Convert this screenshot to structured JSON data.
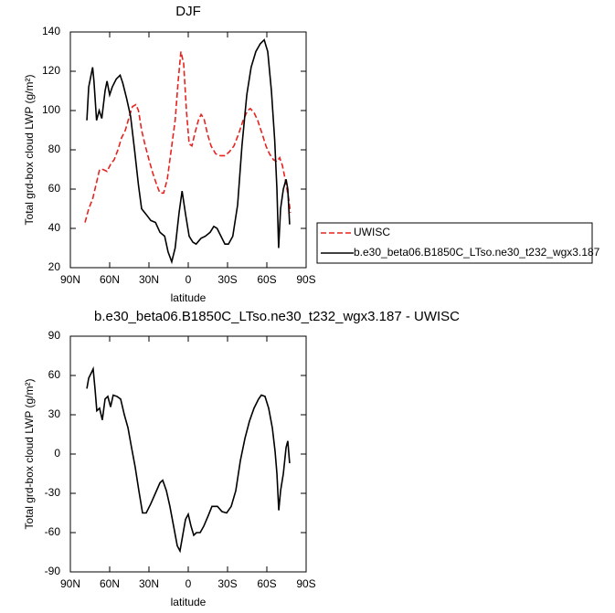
{
  "chart_data": [
    {
      "type": "line",
      "title": "DJF",
      "xlabel": "latitude",
      "ylabel": "Total grd-box cloud LWP (g/m²)",
      "xlim": [
        90,
        -90
      ],
      "xticks": [
        {
          "value": 90,
          "label": "90N"
        },
        {
          "value": 60,
          "label": "60N"
        },
        {
          "value": 30,
          "label": "30N"
        },
        0,
        {
          "value": -30,
          "label": "30S"
        },
        {
          "value": -60,
          "label": "60S"
        },
        {
          "value": -90,
          "label": "90S"
        }
      ],
      "ylim": [
        20,
        140
      ],
      "yticks": [
        20,
        40,
        60,
        80,
        100,
        120,
        140
      ],
      "legend": "right",
      "series": [
        {
          "name": "UWISC",
          "color": "#e8231f",
          "linestyle": "dashed",
          "x": [
            78.8,
            76,
            73,
            70.5,
            67.7,
            65,
            62,
            59,
            56.5,
            53.7,
            51,
            48,
            45,
            42.6,
            40,
            38,
            35.6,
            32.8,
            30,
            27,
            24,
            21.6,
            18.8,
            16,
            13,
            10,
            7.7,
            5.6,
            3.5,
            1.4,
            -0.7,
            -2.8,
            -4.9,
            -7.7,
            -9.8,
            -12,
            -14.7,
            -17.4,
            -20.9,
            -24.4,
            -28,
            -31.4,
            -34.9,
            -38.4,
            -41.9,
            -45.3,
            -47.4,
            -50.2,
            -53,
            -56.5,
            -59.3,
            -62,
            -65,
            -67.7,
            -69.8,
            -71.9,
            -74,
            -76.7,
            -78
          ],
          "values": [
            43,
            50,
            55,
            62,
            70,
            70,
            69,
            73,
            75,
            80,
            86,
            90,
            97,
            102,
            103,
            100,
            90,
            82,
            75,
            68,
            62,
            58,
            58,
            65,
            80,
            95,
            115,
            130,
            124,
            100,
            83,
            82,
            88,
            95,
            98,
            96,
            88,
            82,
            78,
            77,
            77,
            79,
            82,
            88,
            95,
            100,
            101,
            99,
            95,
            88,
            82,
            78,
            75,
            74,
            76,
            72,
            65,
            55,
            48
          ]
        },
        {
          "name": "b.e30_beta06.B1850C_LTso.ne30_t232_wgx3.187",
          "color": "#000000",
          "linestyle": "solid",
          "x": [
            77.4,
            76,
            73,
            72,
            70,
            68,
            66,
            63.5,
            62,
            60,
            58,
            55,
            52,
            50,
            47,
            44,
            41,
            38,
            35.6,
            32,
            28.6,
            25,
            21.6,
            18,
            15.4,
            12.6,
            10,
            7,
            4.7,
            2,
            -0.7,
            -3.5,
            -6,
            -9.8,
            -13,
            -16.7,
            -19.5,
            -22,
            -25,
            -28,
            -30.7,
            -34,
            -37.7,
            -41,
            -44.7,
            -48,
            -51.6,
            -55,
            -58,
            -60.7,
            -63.5,
            -66,
            -67.7,
            -69,
            -70.5,
            -72.6,
            -74.7,
            -76,
            -77.4
          ],
          "values": [
            95,
            112,
            122,
            115,
            95,
            100,
            96,
            110,
            115,
            108,
            112,
            116,
            118,
            114,
            106,
            97,
            80,
            62,
            50,
            47,
            44,
            43,
            38,
            36,
            28,
            23,
            30,
            48,
            59,
            47,
            36,
            33,
            32,
            35,
            36,
            38,
            41,
            40,
            36,
            32,
            32,
            36,
            52,
            82,
            108,
            122,
            130,
            134,
            136,
            130,
            110,
            85,
            60,
            30,
            50,
            60,
            65,
            60,
            42
          ]
        }
      ]
    },
    {
      "type": "line",
      "title": "b.e30_beta06.B1850C_LTso.ne30_t232_wgx3.187 - UWISC",
      "xlabel": "latitude",
      "ylabel": "Total grd-box cloud LWP (g/m²)",
      "xlim": [
        90,
        -90
      ],
      "xticks": [
        {
          "value": 90,
          "label": "90N"
        },
        {
          "value": 60,
          "label": "60N"
        },
        {
          "value": 30,
          "label": "30N"
        },
        0,
        {
          "value": -30,
          "label": "30S"
        },
        {
          "value": -60,
          "label": "60S"
        },
        {
          "value": -90,
          "label": "90S"
        }
      ],
      "ylim": [
        -90,
        90
      ],
      "yticks": [
        -90,
        -60,
        -30,
        0,
        30,
        60,
        90
      ],
      "series": [
        {
          "color": "#000000",
          "linestyle": "solid",
          "x": [
            77.4,
            76,
            74,
            72.6,
            71.2,
            69.8,
            67.7,
            65.6,
            63.5,
            61.4,
            59.3,
            57.3,
            54.4,
            51.6,
            48.8,
            46,
            43.3,
            40.5,
            37.7,
            34.9,
            32.1,
            28.6,
            25.1,
            21.6,
            19.5,
            16.7,
            14,
            11.2,
            8.4,
            6.3,
            4.2,
            2.1,
            0,
            -2.1,
            -4.2,
            -6.3,
            -9.1,
            -11.9,
            -15.3,
            -18.1,
            -22.3,
            -25.8,
            -29.3,
            -32.8,
            -36.3,
            -39.8,
            -43.3,
            -46.7,
            -50.2,
            -53.7,
            -55.8,
            -58.6,
            -61.4,
            -64.2,
            -66.3,
            -67.7,
            -69.1,
            -70.5,
            -72.6,
            -74.7,
            -76,
            -77.4
          ],
          "values": [
            50,
            58,
            62,
            65,
            50,
            33,
            35,
            26,
            42,
            44,
            36,
            45,
            44,
            42,
            30,
            20,
            5,
            -10,
            -28,
            -45,
            -45,
            -38,
            -30,
            -22,
            -20,
            -28,
            -40,
            -55,
            -70,
            -74,
            -62,
            -50,
            -46,
            -55,
            -62,
            -60,
            -60,
            -55,
            -47,
            -40,
            -40,
            -44,
            -45,
            -40,
            -28,
            -5,
            12,
            25,
            35,
            42,
            45,
            44,
            35,
            20,
            2,
            -15,
            -43,
            -28,
            -15,
            5,
            10,
            -7
          ]
        }
      ]
    }
  ]
}
